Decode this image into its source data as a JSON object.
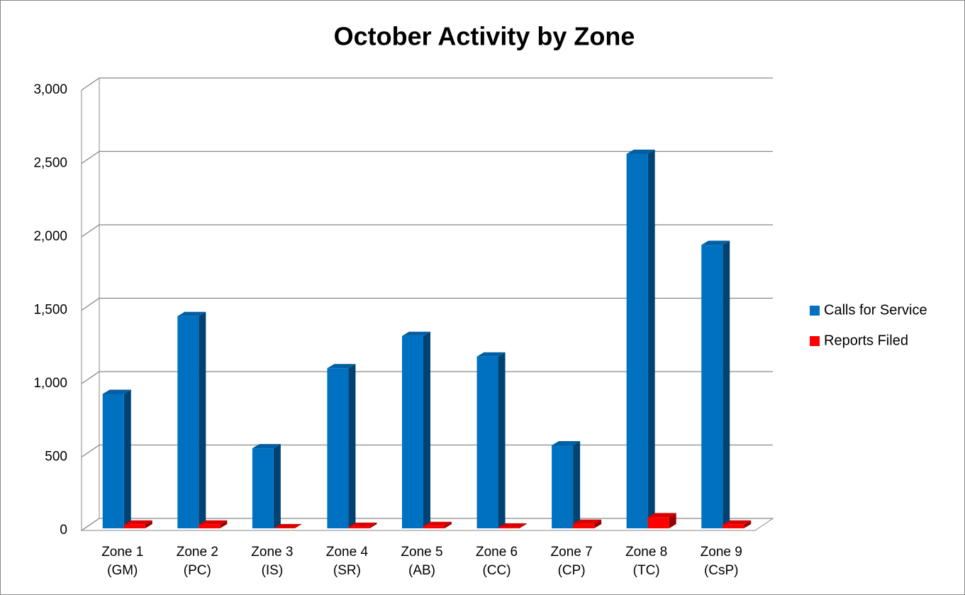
{
  "chart_data": {
    "type": "bar3d",
    "title": "October Activity by Zone",
    "categories": [
      "Zone 1 (GM)",
      "Zone 2 (PC)",
      "Zone 3 (IS)",
      "Zone 4 (SR)",
      "Zone 5 (AB)",
      "Zone 6 (CC)",
      "Zone 7 (CP)",
      "Zone 8 (TC)",
      "Zone 9 (CsP)"
    ],
    "series": [
      {
        "name": "Calls for Service",
        "color": "#0070c0",
        "values": [
          930,
          1460,
          560,
          1105,
          1325,
          1185,
          580,
          2565,
          1945
        ]
      },
      {
        "name": "Reports Filed",
        "color": "#ff0000",
        "values": [
          40,
          40,
          15,
          25,
          30,
          20,
          45,
          90,
          40
        ]
      }
    ],
    "ylim": [
      0,
      3000
    ],
    "yticks": [
      0,
      500,
      {
        "value": 1000,
        "label": "1,000"
      },
      {
        "value": 1500,
        "label": "1,500"
      },
      {
        "value": 2000,
        "label": "2,000"
      },
      {
        "value": 2500,
        "label": "2,500"
      },
      {
        "value": 3000,
        "label": "3,000"
      }
    ],
    "grid": true,
    "legend": "right"
  }
}
